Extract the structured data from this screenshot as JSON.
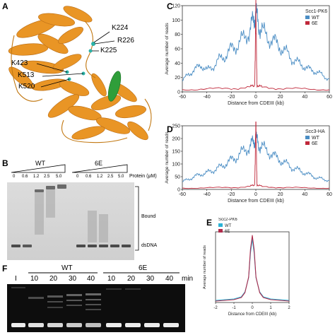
{
  "panels": {
    "A": {
      "label": "A",
      "residues": [
        "K224",
        "R226",
        "K225",
        "K423",
        "K513",
        "K520"
      ]
    },
    "B": {
      "label": "B",
      "groups": [
        "WT",
        "6E"
      ],
      "concentrations": [
        "0",
        "0.6",
        "1.2",
        "2.5",
        "5.0"
      ],
      "protein_label": "Protein (μM)",
      "bound_label": "Bound",
      "dsdna_label": "dsDNA"
    },
    "F": {
      "label": "F",
      "lane_I": "I",
      "groups": [
        "WT",
        "6E"
      ],
      "times": [
        "10",
        "20",
        "30",
        "40"
      ],
      "unit": "min"
    }
  },
  "colors": {
    "wt": "#4a8dc4",
    "e6": "#c0283a",
    "protein": "#e8901a",
    "highlight": "#2f9e3a"
  },
  "chart_data": [
    {
      "id": "C",
      "label": "C",
      "type": "line",
      "title": "Scc1-PK6",
      "xlabel": "Distance from CDEIII (kb)",
      "ylabel": "Average number of reads",
      "xlim": [
        -60,
        60
      ],
      "ylim": [
        0,
        120
      ],
      "xticks": [
        "-60",
        "-40",
        "-20",
        "0",
        "20",
        "40",
        "60"
      ],
      "yticks": [
        "0",
        "20",
        "40",
        "60",
        "80",
        "100",
        "120"
      ],
      "legend": "top-right",
      "series": [
        {
          "name": "WT",
          "color": "#4a8dc4",
          "x": [
            -60,
            -55,
            -50,
            -45,
            -40,
            -35,
            -30,
            -25,
            -20,
            -15,
            -10,
            -5,
            -2,
            0,
            2,
            5,
            10,
            15,
            20,
            25,
            30,
            35,
            40,
            45,
            50,
            55,
            60
          ],
          "y": [
            15,
            25,
            30,
            38,
            30,
            35,
            45,
            50,
            60,
            65,
            75,
            85,
            100,
            110,
            95,
            85,
            75,
            70,
            62,
            55,
            45,
            40,
            35,
            30,
            28,
            22,
            18
          ]
        },
        {
          "name": "6E",
          "color": "#c0283a",
          "x": [
            -60,
            -40,
            -20,
            -5,
            -1,
            0,
            1,
            5,
            20,
            40,
            60
          ],
          "y": [
            3,
            4,
            5,
            6,
            10,
            100,
            10,
            6,
            5,
            4,
            3
          ]
        }
      ]
    },
    {
      "id": "D",
      "label": "D",
      "type": "line",
      "title": "Scc3-HA",
      "xlabel": "Distance from CDEIII (kb)",
      "ylabel": "Average number of reads",
      "xlim": [
        -60,
        60
      ],
      "ylim": [
        0,
        250
      ],
      "xticks": [
        "-60",
        "-40",
        "-20",
        "0",
        "20",
        "40",
        "60"
      ],
      "yticks": [
        "0",
        "50",
        "100",
        "150",
        "200",
        "250"
      ],
      "legend": "top-right",
      "series": [
        {
          "name": "WT",
          "color": "#4a8dc4",
          "x": [
            -60,
            -55,
            -50,
            -45,
            -40,
            -35,
            -30,
            -25,
            -20,
            -15,
            -10,
            -5,
            -2,
            0,
            2,
            5,
            10,
            15,
            20,
            25,
            30,
            35,
            40,
            45,
            50,
            55,
            60
          ],
          "y": [
            30,
            40,
            50,
            60,
            65,
            75,
            85,
            100,
            115,
            130,
            150,
            170,
            185,
            200,
            180,
            165,
            150,
            130,
            115,
            100,
            85,
            75,
            65,
            55,
            45,
            40,
            35
          ]
        },
        {
          "name": "6E",
          "color": "#c0283a",
          "x": [
            -60,
            -40,
            -20,
            -5,
            -1,
            0,
            1,
            5,
            20,
            40,
            60
          ],
          "y": [
            5,
            6,
            8,
            10,
            20,
            230,
            20,
            10,
            8,
            6,
            5
          ]
        }
      ]
    },
    {
      "id": "E",
      "label": "E",
      "type": "line",
      "title": "Scc2-PK6",
      "xlabel": "Distance from CDEIII (kb)",
      "ylabel": "Average number of reads",
      "xlim": [
        -2,
        2
      ],
      "ylim": [
        0,
        10
      ],
      "xticks": [
        "-2",
        "-1",
        "0",
        "1",
        "2"
      ],
      "yticks": [],
      "legend": "top-left",
      "series": [
        {
          "name": "WT",
          "color": "#2bb3d6",
          "x": [
            -2,
            -1.5,
            -1,
            -0.6,
            -0.4,
            -0.2,
            -0.1,
            0,
            0.1,
            0.2,
            0.4,
            0.6,
            1,
            1.5,
            2
          ],
          "y": [
            0.3,
            0.4,
            0.5,
            0.8,
            1.5,
            3.5,
            7,
            9,
            7,
            3.5,
            1.5,
            0.8,
            0.5,
            0.4,
            0.3
          ]
        },
        {
          "name": "6E",
          "color": "#b02a4a",
          "x": [
            -2,
            -1.5,
            -1,
            -0.6,
            -0.4,
            -0.2,
            -0.1,
            0,
            0.1,
            0.2,
            0.4,
            0.6,
            1,
            1.5,
            2
          ],
          "y": [
            0.2,
            0.3,
            0.4,
            0.7,
            1.4,
            3.6,
            7.5,
            9.5,
            7.5,
            3.6,
            1.4,
            0.7,
            0.4,
            0.3,
            0.2
          ]
        }
      ]
    }
  ]
}
